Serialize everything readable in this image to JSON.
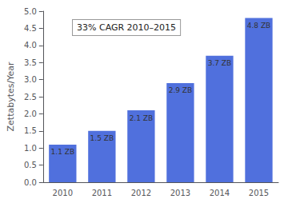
{
  "chart_data": {
    "type": "bar",
    "ylabel": "Zettabytes/Year",
    "annotation": "33% CAGR 2010–2015",
    "categories": [
      "2010",
      "2011",
      "2012",
      "2013",
      "2014",
      "2015"
    ],
    "values": [
      1.1,
      1.5,
      2.1,
      2.9,
      3.7,
      4.8
    ],
    "value_labels": [
      "1.1 ZB",
      "1.5 ZB",
      "2.1 ZB",
      "2.9 ZB",
      "3.7 ZB",
      "4.8 ZB"
    ],
    "data_labels": true,
    "ylim": [
      0,
      5.0
    ],
    "yticks": [
      {
        "value": 0,
        "label": "0.0"
      },
      0.5,
      {
        "value": 1,
        "label": "1.0"
      },
      1.5,
      {
        "value": 2,
        "label": "2.0"
      },
      2.5,
      {
        "value": 3,
        "label": "3.0"
      },
      3.5,
      {
        "value": 4,
        "label": "4.0"
      },
      4.5,
      {
        "value": 5,
        "label": "5.0"
      }
    ],
    "grid": false
  }
}
